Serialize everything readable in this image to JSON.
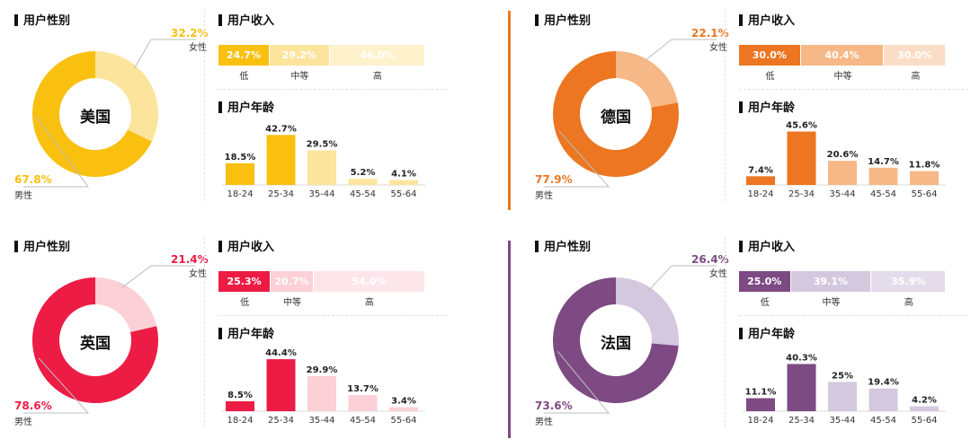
{
  "headings": {
    "gender": "用户性别",
    "income": "用户收入",
    "age": "用户年龄"
  },
  "chart_data": [
    {
      "type": "pie",
      "country": "美国",
      "colors": {
        "main": "#F9C00F",
        "light": "#FCE49C",
        "lighter": "#FEF2CC"
      },
      "gender": {
        "male_label": "男性",
        "female_label": "女性",
        "male": 67.8,
        "female": 32.2,
        "male_text": "67.8%",
        "female_text": "32.2%"
      },
      "income": {
        "categories": [
          "低",
          "中等",
          "高"
        ],
        "values": [
          24.7,
          29.2,
          46.0
        ],
        "texts": [
          "24.7%",
          "29.2%",
          "46.0%"
        ]
      },
      "age": {
        "type": "bar",
        "categories": [
          "18-24",
          "25-34",
          "35-44",
          "45-54",
          "55-64"
        ],
        "values": [
          18.5,
          42.7,
          29.5,
          5.2,
          4.1
        ],
        "texts": [
          "18.5%",
          "42.7%",
          "29.5%",
          "5.2%",
          "4.1%"
        ]
      }
    },
    {
      "type": "pie",
      "country": "德国",
      "colors": {
        "main": "#EC7621",
        "light": "#F6B886",
        "lighter": "#FBDDC6"
      },
      "gender": {
        "male_label": "男性",
        "female_label": "女性",
        "male": 77.9,
        "female": 22.1,
        "male_text": "77.9%",
        "female_text": "22.1%"
      },
      "income": {
        "categories": [
          "低",
          "中等",
          "高"
        ],
        "values": [
          30.0,
          40.4,
          30.0
        ],
        "texts": [
          "30.0%",
          "40.4%",
          "30.0%"
        ]
      },
      "age": {
        "type": "bar",
        "categories": [
          "18-24",
          "25-34",
          "35-44",
          "45-54",
          "55-64"
        ],
        "values": [
          7.4,
          45.6,
          20.6,
          14.7,
          11.8
        ],
        "texts": [
          "7.4%",
          "45.6%",
          "20.6%",
          "14.7%",
          "11.8%"
        ]
      }
    },
    {
      "type": "pie",
      "country": "英国",
      "colors": {
        "main": "#EC1C45",
        "light": "#FBD0D6",
        "lighter": "#FDE6E9"
      },
      "gender": {
        "male_label": "男性",
        "female_label": "女性",
        "male": 78.6,
        "female": 21.4,
        "male_text": "78.6%",
        "female_text": "21.4%"
      },
      "income": {
        "categories": [
          "低",
          "中等",
          "高"
        ],
        "values": [
          25.3,
          20.7,
          54.0
        ],
        "texts": [
          "25.3%",
          "20.7%",
          "54.0%"
        ]
      },
      "age": {
        "type": "bar",
        "categories": [
          "18-24",
          "25-34",
          "35-44",
          "45-54",
          "55-64"
        ],
        "values": [
          8.5,
          44.4,
          29.9,
          13.7,
          3.4
        ],
        "texts": [
          "8.5%",
          "44.4%",
          "29.9%",
          "13.7%",
          "3.4%"
        ]
      }
    },
    {
      "type": "pie",
      "country": "法国",
      "colors": {
        "main": "#7E4A83",
        "light": "#D4C8DF",
        "lighter": "#E4DCEA"
      },
      "gender": {
        "male_label": "男性",
        "female_label": "女性",
        "male": 73.6,
        "female": 26.4,
        "male_text": "73.6%",
        "female_text": "26.4%"
      },
      "income": {
        "categories": [
          "低",
          "中等",
          "高"
        ],
        "values": [
          25.0,
          39.1,
          35.9
        ],
        "texts": [
          "25.0%",
          "39.1%",
          "35.9%"
        ]
      },
      "age": {
        "type": "bar",
        "categories": [
          "18-24",
          "25-34",
          "35-44",
          "45-54",
          "55-64"
        ],
        "values": [
          11.1,
          40.3,
          25,
          19.4,
          4.2
        ],
        "texts": [
          "11.1%",
          "40.3%",
          "25%",
          "19.4%",
          "4.2%"
        ]
      }
    }
  ]
}
